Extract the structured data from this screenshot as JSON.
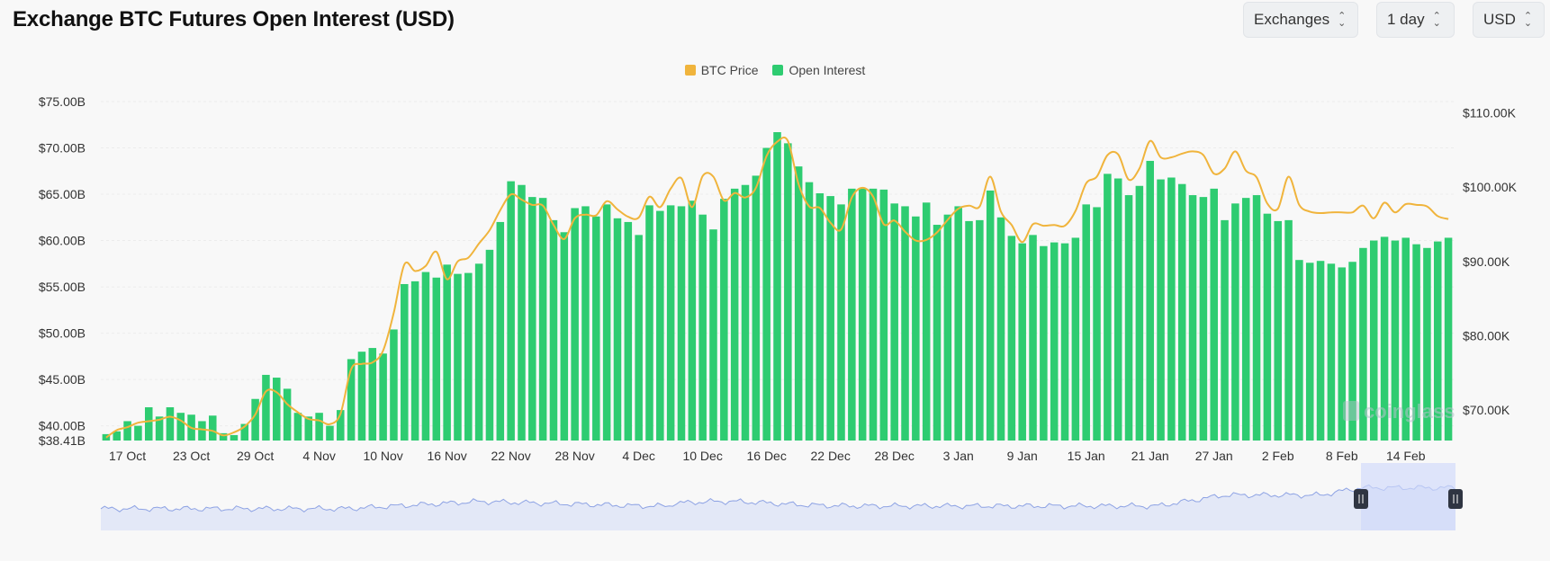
{
  "page": {
    "title": "Exchange BTC Futures Open Interest (USD)"
  },
  "controls": {
    "exchanges_label": "Exchanges",
    "interval_label": "1 day",
    "currency_label": "USD"
  },
  "watermark": "coinglass",
  "colors": {
    "open_interest": "#2ecc71",
    "btc_price": "#f0b43c",
    "navigator_fill": "#e3e8f7",
    "navigator_line": "#8ea3e4",
    "navigator_window": "#cfd9fb"
  },
  "chart_data": {
    "type": "bar",
    "title": "Exchange BTC Futures Open Interest (USD)",
    "legend": [
      "BTC Price",
      "Open Interest"
    ],
    "legend_position": "top-center",
    "grid": true,
    "x_tick_labels": [
      "17 Oct",
      "23 Oct",
      "29 Oct",
      "4 Nov",
      "10 Nov",
      "16 Nov",
      "22 Nov",
      "28 Nov",
      "4 Dec",
      "10 Dec",
      "16 Dec",
      "22 Dec",
      "28 Dec",
      "3 Jan",
      "9 Jan",
      "15 Jan",
      "21 Jan",
      "27 Jan",
      "2 Feb",
      "8 Feb",
      "14 Feb"
    ],
    "y_left": {
      "tick_labels": [
        "$75.00B",
        "$70.00B",
        "$65.00B",
        "$60.00B",
        "$55.00B",
        "$50.00B",
        "$45.00B",
        "$40.00B",
        "$38.41B"
      ],
      "tick_values": [
        75,
        70,
        65,
        60,
        55,
        50,
        45,
        40,
        38.41
      ],
      "range": [
        38.41,
        75
      ],
      "unit": "B USD"
    },
    "y_right": {
      "tick_labels": [
        "$110.00K",
        "$100.00K",
        "$90.00K",
        "$80.00K",
        "$70.00K"
      ],
      "tick_values": [
        110,
        100,
        90,
        80,
        70
      ],
      "range": [
        65.9,
        111.5
      ],
      "unit": "K USD"
    },
    "start_date": "2024-10-15",
    "x_tick_start_index": 2,
    "x_tick_step_days": 6,
    "series": [
      {
        "name": "Open Interest",
        "type": "bar",
        "axis": "left",
        "values": [
          39.1,
          39.4,
          40.5,
          40.0,
          42.0,
          41.0,
          42.0,
          41.4,
          41.2,
          40.5,
          41.1,
          39.2,
          39.0,
          40.2,
          42.9,
          45.5,
          45.2,
          44.0,
          41.4,
          41.0,
          41.4,
          40.0,
          41.7,
          47.2,
          48.0,
          48.4,
          47.8,
          50.4,
          55.3,
          55.6,
          56.6,
          56.0,
          57.4,
          56.4,
          56.5,
          57.5,
          59.0,
          62.0,
          66.4,
          66.0,
          64.7,
          64.6,
          62.2,
          60.9,
          63.5,
          63.7,
          62.6,
          63.9,
          62.4,
          62.0,
          60.6,
          63.8,
          63.2,
          63.8,
          63.7,
          64.3,
          62.8,
          61.2,
          64.5,
          65.6,
          66.0,
          67.0,
          70.0,
          71.7,
          70.5,
          68.0,
          66.3,
          65.1,
          64.8,
          63.9,
          65.6,
          65.6,
          65.6,
          65.5,
          64.0,
          63.7,
          62.6,
          64.1,
          61.7,
          62.8,
          63.7,
          62.1,
          62.2,
          65.4,
          62.5,
          60.5,
          59.7,
          60.6,
          59.4,
          59.8,
          59.7,
          60.3,
          63.9,
          63.6,
          67.2,
          66.7,
          64.9,
          65.9,
          68.6,
          66.6,
          66.8,
          66.1,
          64.9,
          64.7,
          65.6,
          62.2,
          64.0,
          64.6,
          64.9,
          62.9,
          62.1,
          62.2,
          57.9,
          57.6,
          57.8,
          57.5,
          57.1,
          57.7,
          59.2,
          60.0,
          60.4,
          60.0,
          60.3,
          59.6,
          59.2,
          59.9,
          60.3
        ]
      },
      {
        "name": "BTC Price",
        "type": "line",
        "axis": "right",
        "values": [
          66.3,
          67.3,
          67.7,
          68.3,
          68.5,
          68.7,
          69.1,
          68.6,
          67.6,
          67.4,
          67.2,
          66.6,
          67.0,
          67.8,
          69.4,
          72.5,
          72.4,
          70.8,
          69.7,
          68.8,
          68.6,
          68.1,
          69.5,
          75.5,
          76.2,
          76.4,
          78.0,
          83.1,
          89.6,
          88.7,
          89.4,
          91.3,
          87.6,
          90.0,
          90.5,
          92.4,
          94.2,
          96.9,
          99.0,
          98.3,
          97.6,
          97.5,
          94.9,
          93.0,
          95.8,
          96.3,
          96.2,
          98.1,
          97.0,
          96.0,
          95.9,
          98.7,
          97.3,
          99.8,
          101.2,
          97.3,
          101.5,
          101.4,
          98.2,
          99.2,
          98.6,
          99.9,
          104.2,
          106.1,
          106.2,
          100.4,
          97.4,
          97.2,
          95.2,
          94.3,
          98.6,
          99.9,
          98.7,
          95.0,
          95.5,
          94.0,
          92.8,
          92.9,
          93.9,
          95.6,
          97.1,
          97.5,
          97.4,
          101.4,
          96.7,
          94.9,
          92.6,
          95.0,
          94.8,
          94.9,
          94.8,
          96.8,
          100.5,
          101.4,
          104.3,
          104.4,
          101.0,
          102.5,
          106.2,
          104.0,
          104.0,
          104.5,
          104.8,
          104.3,
          101.8,
          102.5,
          104.8,
          102.2,
          101.3,
          97.8,
          97.1,
          101.4,
          97.6,
          96.7,
          96.5,
          96.6,
          96.6,
          96.6,
          97.5,
          95.8,
          97.9,
          96.6,
          97.7,
          97.6,
          97.4,
          96.1,
          95.7
        ]
      }
    ]
  }
}
